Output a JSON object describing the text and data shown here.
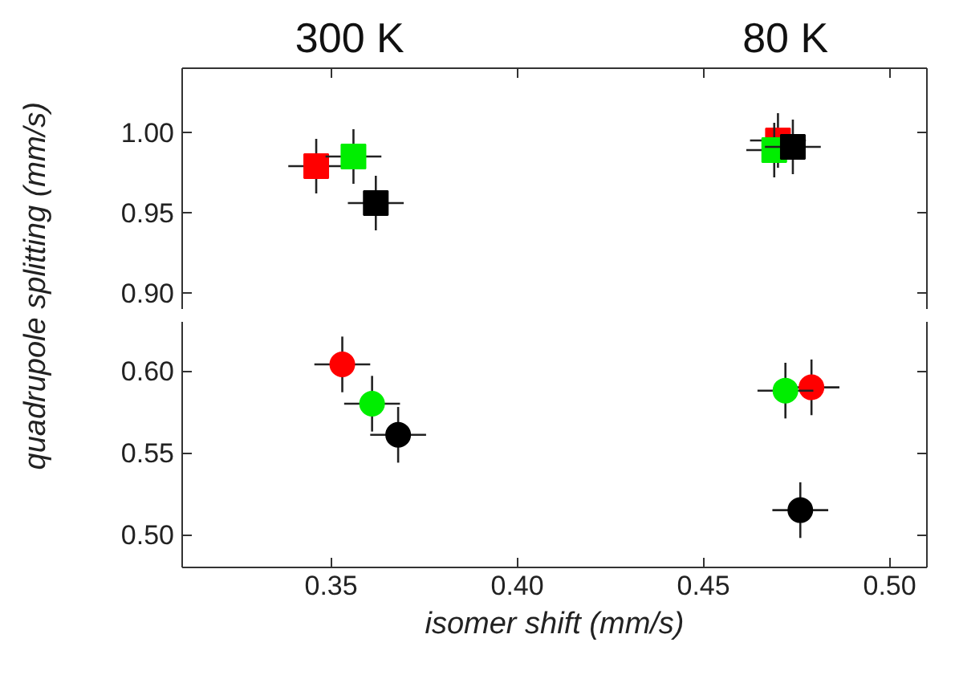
{
  "chart_data": [
    {
      "type": "scatter",
      "ylabel": "quadrupole splitting (mm/s)",
      "marker": "square",
      "tick_labels": "y",
      "annotations": [
        "300 K",
        "80 K"
      ],
      "xlim": [
        0.31,
        0.51
      ],
      "xticks": [
        {
          "value": 0.35,
          "label": null
        },
        {
          "value": 0.4,
          "label": null
        },
        {
          "value": 0.45,
          "label": null
        },
        {
          "value": 0.5,
          "label": null
        }
      ],
      "ylim": [
        0.89,
        1.04
      ],
      "yticks": [
        {
          "value": 0.9,
          "label": "0.90"
        },
        {
          "value": 0.95,
          "label": "0.95"
        },
        {
          "value": 1.0,
          "label": "1.00"
        }
      ],
      "series": [
        {
          "color": "#ff0000",
          "x": [
            0.346,
            0.47
          ],
          "values": [
            0.979,
            0.995
          ],
          "xerrors": [
            0.0075,
            0.0075
          ],
          "errors": [
            0.017,
            0.017
          ]
        },
        {
          "color": "#00ee00",
          "x": [
            0.356,
            0.469
          ],
          "values": [
            0.985,
            0.989
          ],
          "xerrors": [
            0.0075,
            0.0075
          ],
          "errors": [
            0.017,
            0.017
          ]
        },
        {
          "color": "#000000",
          "x": [
            0.362,
            0.474
          ],
          "values": [
            0.956,
            0.991
          ],
          "xerrors": [
            0.0075,
            0.0075
          ],
          "errors": [
            0.017,
            0.017
          ]
        }
      ]
    },
    {
      "type": "scatter",
      "xlabel": "isomer shift (mm/s)",
      "marker": "circle",
      "xlim": [
        0.31,
        0.51
      ],
      "xticks": [
        {
          "value": 0.35,
          "label": "0.35"
        },
        {
          "value": 0.4,
          "label": "0.40"
        },
        {
          "value": 0.45,
          "label": "0.45"
        },
        {
          "value": 0.5,
          "label": "0.50"
        }
      ],
      "ylim": [
        0.48,
        0.63
      ],
      "yticks": [
        {
          "value": 0.5,
          "label": "0.50"
        },
        {
          "value": 0.55,
          "label": "0.55"
        },
        {
          "value": 0.6,
          "label": "0.60"
        }
      ],
      "series": [
        {
          "color": "#ff0000",
          "x": [
            0.353,
            0.479
          ],
          "values": [
            0.604,
            0.59
          ],
          "xerrors": [
            0.0075,
            0.0075
          ],
          "errors": [
            0.017,
            0.017
          ]
        },
        {
          "color": "#00ee00",
          "x": [
            0.361,
            0.472
          ],
          "values": [
            0.58,
            0.588
          ],
          "xerrors": [
            0.0075,
            0.0075
          ],
          "errors": [
            0.017,
            0.017
          ]
        },
        {
          "color": "#000000",
          "x": [
            0.368,
            0.476
          ],
          "values": [
            0.561,
            0.515
          ],
          "xerrors": [
            0.0075,
            0.0075
          ],
          "errors": [
            0.017,
            0.017
          ]
        }
      ]
    }
  ]
}
